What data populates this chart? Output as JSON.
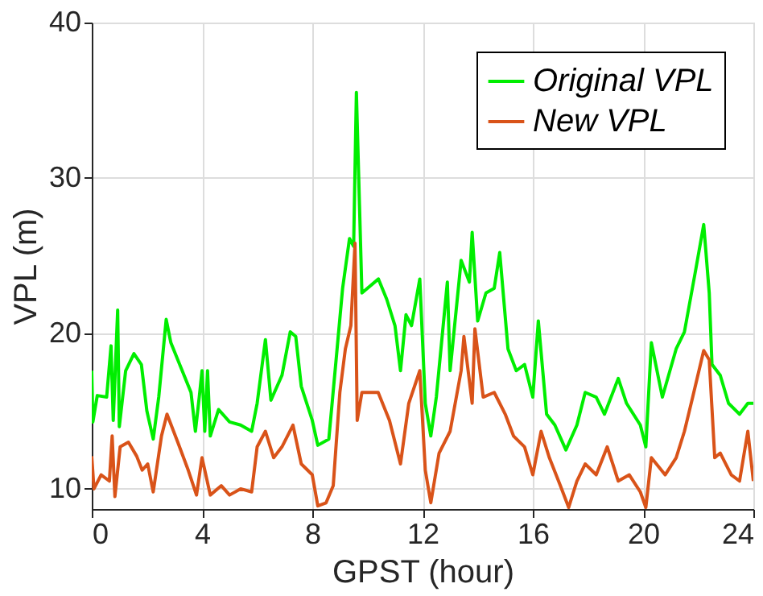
{
  "chart_data": {
    "type": "line",
    "xlabel": "GPST (hour)",
    "ylabel": "VPL (m)",
    "xlim": [
      0,
      24
    ],
    "ylim": [
      8.7,
      40
    ],
    "xticks": [
      0,
      4,
      8,
      12,
      16,
      20,
      24
    ],
    "yticks": [
      10,
      20,
      30,
      40
    ],
    "grid": true,
    "legend": "top right",
    "line_style": "solid",
    "marker": "none",
    "series": [
      {
        "name": "Original VPL",
        "color": "#00ee00",
        "x": [
          0,
          0.04,
          0.2,
          0.54,
          0.7,
          0.78,
          0.94,
          1,
          1.23,
          1.53,
          1.8,
          2,
          2.23,
          2.43,
          2.7,
          2.87,
          3.6,
          3.76,
          3.9,
          4.0,
          4.1,
          4.2,
          4.3,
          4.6,
          5.0,
          5.4,
          5.8,
          6.0,
          6.3,
          6.5,
          6.9,
          7.2,
          7.4,
          7.6,
          7.8,
          8,
          8.2,
          8.6,
          8.9,
          9.1,
          9.35,
          9.5,
          9.6,
          9.8,
          10.4,
          10.7,
          11.0,
          11.2,
          11.4,
          11.6,
          11.9,
          12.1,
          12.3,
          12.5,
          12.9,
          13.0,
          13.4,
          13.7,
          13.8,
          14.0,
          14.3,
          14.6,
          14.8,
          15.1,
          15.4,
          15.7,
          16.0,
          16.2,
          16.5,
          16.8,
          17.2,
          17.6,
          17.9,
          18.3,
          18.6,
          19.1,
          19.4,
          19.9,
          20.1,
          20.3,
          20.7,
          21.2,
          21.5,
          21.9,
          22.2,
          22.4,
          22.5,
          22.8,
          23.1,
          23.5,
          23.8,
          24
        ],
        "values": [
          17.6,
          14.3,
          16,
          15.9,
          19.2,
          14.4,
          21.5,
          14,
          17.6,
          18.7,
          18,
          15,
          13.2,
          15.9,
          20.9,
          19.4,
          16.2,
          13.7,
          15.9,
          17.6,
          13.7,
          17.6,
          13.4,
          15.1,
          14.3,
          14.1,
          13.7,
          15.5,
          19.6,
          15.7,
          17.3,
          20.1,
          19.8,
          16.6,
          15.5,
          14.4,
          12.8,
          13.2,
          19,
          22.9,
          26.1,
          25.6,
          35.5,
          22.6,
          23.5,
          22.2,
          20.5,
          17.6,
          21.2,
          20.5,
          23.5,
          15.5,
          13.4,
          15.9,
          23.3,
          17.6,
          24.7,
          23.3,
          26.5,
          20.8,
          22.6,
          22.9,
          25.2,
          19,
          17.6,
          18,
          15.9,
          20.8,
          14.8,
          14.1,
          12.5,
          14.1,
          16.2,
          15.9,
          14.8,
          17.1,
          15.5,
          14.1,
          12.7,
          19.4,
          15.9,
          19,
          20.1,
          24,
          27,
          22.6,
          18,
          17.3,
          15.5,
          14.8,
          15.5,
          15.5
        ]
      },
      {
        "name": "New VPL",
        "color": "#d95319",
        "x": [
          0,
          0.08,
          0.34,
          0.64,
          0.74,
          0.84,
          1.03,
          1.33,
          1.63,
          1.83,
          2.03,
          2.23,
          2.53,
          2.73,
          3.12,
          3.5,
          3.8,
          4.0,
          4.3,
          4.7,
          5.0,
          5.4,
          5.8,
          6.0,
          6.3,
          6.6,
          6.9,
          7.3,
          7.6,
          8,
          8.2,
          8.5,
          8.76,
          9.0,
          9.2,
          9.4,
          9.55,
          9.63,
          9.8,
          10.39,
          10.8,
          11.2,
          11.5,
          11.9,
          12.1,
          12.3,
          12.6,
          13.0,
          13.4,
          13.5,
          13.8,
          13.9,
          14.2,
          14.6,
          15.0,
          15.3,
          15.7,
          16.0,
          16.3,
          16.6,
          17.0,
          17.3,
          17.6,
          17.9,
          18.3,
          18.7,
          19.1,
          19.5,
          19.9,
          20.1,
          20.3,
          20.8,
          21.2,
          21.5,
          21.8,
          22.2,
          22.4,
          22.6,
          22.8,
          23.2,
          23.5,
          23.8,
          24
        ],
        "values": [
          12.1,
          10,
          10.9,
          10.5,
          13.4,
          9.5,
          12.7,
          13,
          12.1,
          11.2,
          11.6,
          9.8,
          13.4,
          14.8,
          13,
          11.2,
          9.6,
          12,
          9.6,
          10.2,
          9.6,
          10,
          9.8,
          12.7,
          13.7,
          12,
          12.7,
          14.1,
          11.6,
          10.9,
          8.9,
          9.1,
          10.2,
          16.2,
          19,
          20.5,
          25.8,
          14.4,
          16.2,
          16.2,
          14.4,
          11.6,
          15.5,
          17.6,
          11.2,
          9.1,
          12.3,
          13.7,
          17.6,
          19.8,
          15.5,
          20.3,
          15.9,
          16.2,
          14.8,
          13.4,
          12.7,
          10.9,
          13.7,
          12,
          10.2,
          8.8,
          10.5,
          11.6,
          10.9,
          12.7,
          10.5,
          10.9,
          9.8,
          8.8,
          12,
          10.9,
          12,
          13.7,
          15.9,
          18.9,
          18.3,
          12,
          12.3,
          10.9,
          10.5,
          13.7,
          10.5
        ]
      }
    ]
  }
}
